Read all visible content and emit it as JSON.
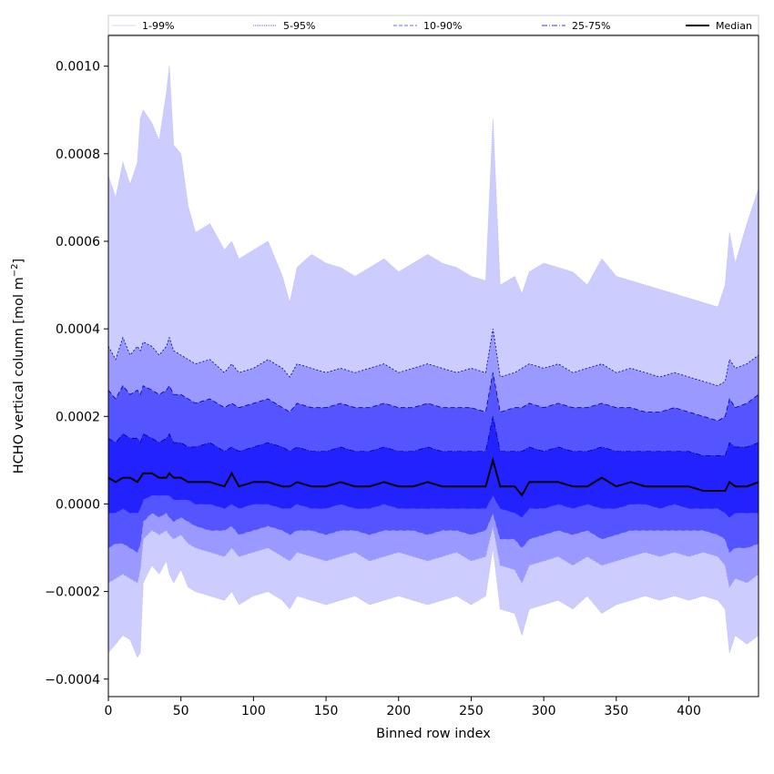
{
  "chart_data": {
    "type": "area",
    "title": "",
    "xlabel": "Binned row index",
    "ylabel_main": "HCHO vertical column [mol m",
    "ylabel_sup": "−2",
    "ylabel_end": "]",
    "xlim": [
      0,
      448
    ],
    "ylim": [
      -0.00044,
      0.00107
    ],
    "x_ticks": [
      0,
      50,
      100,
      150,
      200,
      250,
      300,
      350,
      400
    ],
    "x_tick_labels": [
      "0",
      "50",
      "100",
      "150",
      "200",
      "250",
      "300",
      "350",
      "400"
    ],
    "y_ticks": [
      -0.0004,
      -0.0002,
      0.0,
      0.0002,
      0.0004,
      0.0006,
      0.0008,
      0.001
    ],
    "y_tick_labels": [
      "−0.0004",
      "−0.0002",
      "0.0000",
      "0.0002",
      "0.0004",
      "0.0006",
      "0.0008",
      "0.0010"
    ],
    "grid": false,
    "legend_position": "top",
    "colors": {
      "band_1_99": "#ccccff",
      "band_5_95": "#9999ff",
      "band_10_90": "#5555ff",
      "band_25_75": "#2222ff",
      "line_dark": "#00008b",
      "median": "#000000"
    },
    "legend": [
      {
        "label": "1-99%",
        "key": "p1_99",
        "style": "thin-light"
      },
      {
        "label": "5-95%",
        "key": "p5_95",
        "style": "dotted"
      },
      {
        "label": "10-90%",
        "key": "p10_90",
        "style": "dashed"
      },
      {
        "label": "25-75%",
        "key": "p25_75",
        "style": "dashdot"
      },
      {
        "label": "Median",
        "key": "median",
        "style": "solid"
      }
    ],
    "x": [
      0,
      5,
      10,
      15,
      20,
      22,
      24,
      30,
      35,
      40,
      42,
      45,
      50,
      55,
      60,
      70,
      80,
      85,
      90,
      100,
      110,
      120,
      125,
      130,
      140,
      150,
      160,
      170,
      180,
      190,
      200,
      210,
      220,
      230,
      240,
      250,
      260,
      265,
      270,
      280,
      285,
      290,
      300,
      310,
      320,
      330,
      340,
      350,
      360,
      370,
      380,
      390,
      400,
      410,
      420,
      425,
      428,
      432,
      440,
      448
    ],
    "series": [
      {
        "name": "1-99%",
        "key": "p1_99",
        "upper": [
          0.00075,
          0.0007,
          0.00078,
          0.00073,
          0.00078,
          0.00088,
          0.0009,
          0.00087,
          0.00083,
          0.00094,
          0.001,
          0.00082,
          0.0008,
          0.00068,
          0.00062,
          0.00064,
          0.00058,
          0.0006,
          0.00056,
          0.00058,
          0.0006,
          0.00052,
          0.00046,
          0.00054,
          0.00057,
          0.00055,
          0.00054,
          0.00052,
          0.00054,
          0.00056,
          0.00053,
          0.00055,
          0.00057,
          0.00055,
          0.00054,
          0.00052,
          0.00051,
          0.00088,
          0.0005,
          0.00052,
          0.00048,
          0.00053,
          0.00055,
          0.00054,
          0.00053,
          0.0005,
          0.00056,
          0.00052,
          0.00051,
          0.0005,
          0.00049,
          0.00048,
          0.00047,
          0.00046,
          0.00045,
          0.0005,
          0.00062,
          0.00055,
          0.00064,
          0.00072
        ],
        "lower": [
          -0.00034,
          -0.00032,
          -0.0003,
          -0.00031,
          -0.00035,
          -0.00034,
          -0.00018,
          -0.00014,
          -0.00016,
          -0.00013,
          -0.00016,
          -0.00018,
          -0.00015,
          -0.00019,
          -0.0002,
          -0.00021,
          -0.00022,
          -0.0002,
          -0.00023,
          -0.00021,
          -0.0002,
          -0.00022,
          -0.00024,
          -0.00021,
          -0.00022,
          -0.00023,
          -0.00022,
          -0.00021,
          -0.00023,
          -0.00022,
          -0.00021,
          -0.00022,
          -0.00023,
          -0.00022,
          -0.00021,
          -0.00023,
          -0.00021,
          -0.0001,
          -0.00024,
          -0.00025,
          -0.0003,
          -0.00024,
          -0.00023,
          -0.00022,
          -0.00024,
          -0.00021,
          -0.00025,
          -0.00023,
          -0.00022,
          -0.00021,
          -0.00022,
          -0.00021,
          -0.00022,
          -0.00021,
          -0.00022,
          -0.00024,
          -0.00034,
          -0.0003,
          -0.00032,
          -0.0003
        ]
      },
      {
        "name": "5-95%",
        "key": "p5_95",
        "upper": [
          0.00036,
          0.00033,
          0.00038,
          0.00034,
          0.00036,
          0.00035,
          0.00037,
          0.00036,
          0.00034,
          0.00036,
          0.00038,
          0.00035,
          0.00034,
          0.00033,
          0.00032,
          0.00033,
          0.0003,
          0.00032,
          0.0003,
          0.00031,
          0.00033,
          0.00031,
          0.00029,
          0.00032,
          0.00031,
          0.0003,
          0.00031,
          0.0003,
          0.00031,
          0.00032,
          0.0003,
          0.00031,
          0.00032,
          0.00031,
          0.0003,
          0.00031,
          0.0003,
          0.0004,
          0.00029,
          0.0003,
          0.00031,
          0.00032,
          0.00031,
          0.00032,
          0.0003,
          0.00031,
          0.00032,
          0.0003,
          0.00031,
          0.0003,
          0.00029,
          0.0003,
          0.00029,
          0.00028,
          0.00027,
          0.00028,
          0.00033,
          0.00031,
          0.00032,
          0.00034
        ],
        "lower": [
          -0.00018,
          -0.00017,
          -0.00016,
          -0.00017,
          -0.00018,
          -0.00015,
          -8e-05,
          -6e-05,
          -7e-05,
          -6e-05,
          -7e-05,
          -8e-05,
          -7e-05,
          -9e-05,
          -0.0001,
          -0.00011,
          -0.00012,
          -0.0001,
          -0.00012,
          -0.00011,
          -0.0001,
          -0.00012,
          -0.00013,
          -0.00011,
          -0.00012,
          -0.00013,
          -0.00012,
          -0.00011,
          -0.00013,
          -0.00012,
          -0.00011,
          -0.00012,
          -0.00013,
          -0.00012,
          -0.00011,
          -0.00013,
          -0.00012,
          -5e-05,
          -0.00014,
          -0.00015,
          -0.00018,
          -0.00014,
          -0.00013,
          -0.00012,
          -0.00014,
          -0.00012,
          -0.00014,
          -0.00013,
          -0.00012,
          -0.00011,
          -0.00012,
          -0.00011,
          -0.00012,
          -0.00011,
          -0.00012,
          -0.00014,
          -0.00019,
          -0.00017,
          -0.00018,
          -0.00016
        ]
      },
      {
        "name": "10-90%",
        "key": "p10_90",
        "upper": [
          0.00026,
          0.00024,
          0.00027,
          0.00025,
          0.00026,
          0.00025,
          0.00027,
          0.00026,
          0.00025,
          0.00026,
          0.00027,
          0.00025,
          0.00025,
          0.00024,
          0.00023,
          0.00024,
          0.00022,
          0.00023,
          0.00022,
          0.00023,
          0.00024,
          0.00022,
          0.00021,
          0.00023,
          0.00022,
          0.00022,
          0.00023,
          0.00022,
          0.00022,
          0.00023,
          0.00022,
          0.00022,
          0.00023,
          0.00022,
          0.00022,
          0.00022,
          0.00021,
          0.0003,
          0.00021,
          0.00022,
          0.00022,
          0.00023,
          0.00022,
          0.00023,
          0.00022,
          0.00022,
          0.00023,
          0.00022,
          0.00022,
          0.00021,
          0.00021,
          0.00022,
          0.00021,
          0.0002,
          0.00019,
          0.0002,
          0.00024,
          0.00022,
          0.00023,
          0.00025
        ],
        "lower": [
          -0.0001,
          -9e-05,
          -9e-05,
          -0.0001,
          -0.00011,
          -9e-05,
          -4e-05,
          -2e-05,
          -3e-05,
          -2e-05,
          -3e-05,
          -4e-05,
          -3e-05,
          -4e-05,
          -5e-05,
          -6e-05,
          -6e-05,
          -5e-05,
          -7e-05,
          -6e-05,
          -5e-05,
          -6e-05,
          -7e-05,
          -6e-05,
          -6e-05,
          -7e-05,
          -6e-05,
          -6e-05,
          -7e-05,
          -6e-05,
          -6e-05,
          -6e-05,
          -7e-05,
          -6e-05,
          -6e-05,
          -7e-05,
          -6e-05,
          -2e-05,
          -8e-05,
          -8e-05,
          -0.0001,
          -8e-05,
          -7e-05,
          -6e-05,
          -7e-05,
          -6e-05,
          -8e-05,
          -7e-05,
          -6e-05,
          -6e-05,
          -6e-05,
          -6e-05,
          -6e-05,
          -6e-05,
          -7e-05,
          -8e-05,
          -0.00011,
          -0.0001,
          -0.0001,
          -9e-05
        ]
      },
      {
        "name": "25-75%",
        "key": "p25_75",
        "upper": [
          0.00015,
          0.00014,
          0.00016,
          0.00015,
          0.00015,
          0.00014,
          0.00016,
          0.00015,
          0.00014,
          0.00015,
          0.00016,
          0.00014,
          0.00014,
          0.00013,
          0.00013,
          0.00014,
          0.00012,
          0.00013,
          0.00012,
          0.00013,
          0.00014,
          0.00013,
          0.00012,
          0.00013,
          0.00012,
          0.00012,
          0.00013,
          0.00012,
          0.00012,
          0.00013,
          0.00012,
          0.00012,
          0.00013,
          0.00012,
          0.00012,
          0.00012,
          0.00012,
          0.0002,
          0.00012,
          0.00012,
          0.00012,
          0.00013,
          0.00012,
          0.00013,
          0.00012,
          0.00012,
          0.00013,
          0.00012,
          0.00012,
          0.00012,
          0.00012,
          0.00012,
          0.00012,
          0.00011,
          0.00011,
          0.00011,
          0.00014,
          0.00013,
          0.00013,
          0.00014
        ],
        "lower": [
          -2e-05,
          -2e-05,
          -1e-05,
          -2e-05,
          -2e-05,
          -1e-05,
          1e-05,
          2e-05,
          2e-05,
          2e-05,
          2e-05,
          1e-05,
          1e-05,
          1e-05,
          0.0,
          0.0,
          -1e-05,
          0.0,
          -1e-05,
          0.0,
          0.0,
          -1e-05,
          -1e-05,
          0.0,
          -1e-05,
          -1e-05,
          0.0,
          -1e-05,
          -1e-05,
          0.0,
          -1e-05,
          -1e-05,
          -1e-05,
          -1e-05,
          -1e-05,
          -1e-05,
          -1e-05,
          2e-05,
          -1e-05,
          -2e-05,
          -3e-05,
          -1e-05,
          -1e-05,
          0.0,
          -1e-05,
          0.0,
          -1e-05,
          -1e-05,
          0.0,
          0.0,
          -1e-05,
          0.0,
          -1e-05,
          -1e-05,
          -1e-05,
          -2e-05,
          -3e-05,
          -2e-05,
          -2e-05,
          -2e-05
        ]
      },
      {
        "name": "Median",
        "key": "median",
        "values": [
          6e-05,
          5e-05,
          6e-05,
          6e-05,
          5e-05,
          6e-05,
          7e-05,
          7e-05,
          6e-05,
          6e-05,
          7e-05,
          6e-05,
          6e-05,
          5e-05,
          5e-05,
          5e-05,
          4e-05,
          7e-05,
          4e-05,
          5e-05,
          5e-05,
          4e-05,
          4e-05,
          5e-05,
          4e-05,
          4e-05,
          5e-05,
          4e-05,
          4e-05,
          5e-05,
          4e-05,
          4e-05,
          5e-05,
          4e-05,
          4e-05,
          4e-05,
          4e-05,
          0.0001,
          4e-05,
          4e-05,
          2e-05,
          5e-05,
          5e-05,
          5e-05,
          4e-05,
          4e-05,
          6e-05,
          4e-05,
          5e-05,
          4e-05,
          4e-05,
          4e-05,
          4e-05,
          3e-05,
          3e-05,
          3e-05,
          5e-05,
          4e-05,
          4e-05,
          5e-05
        ]
      }
    ]
  }
}
